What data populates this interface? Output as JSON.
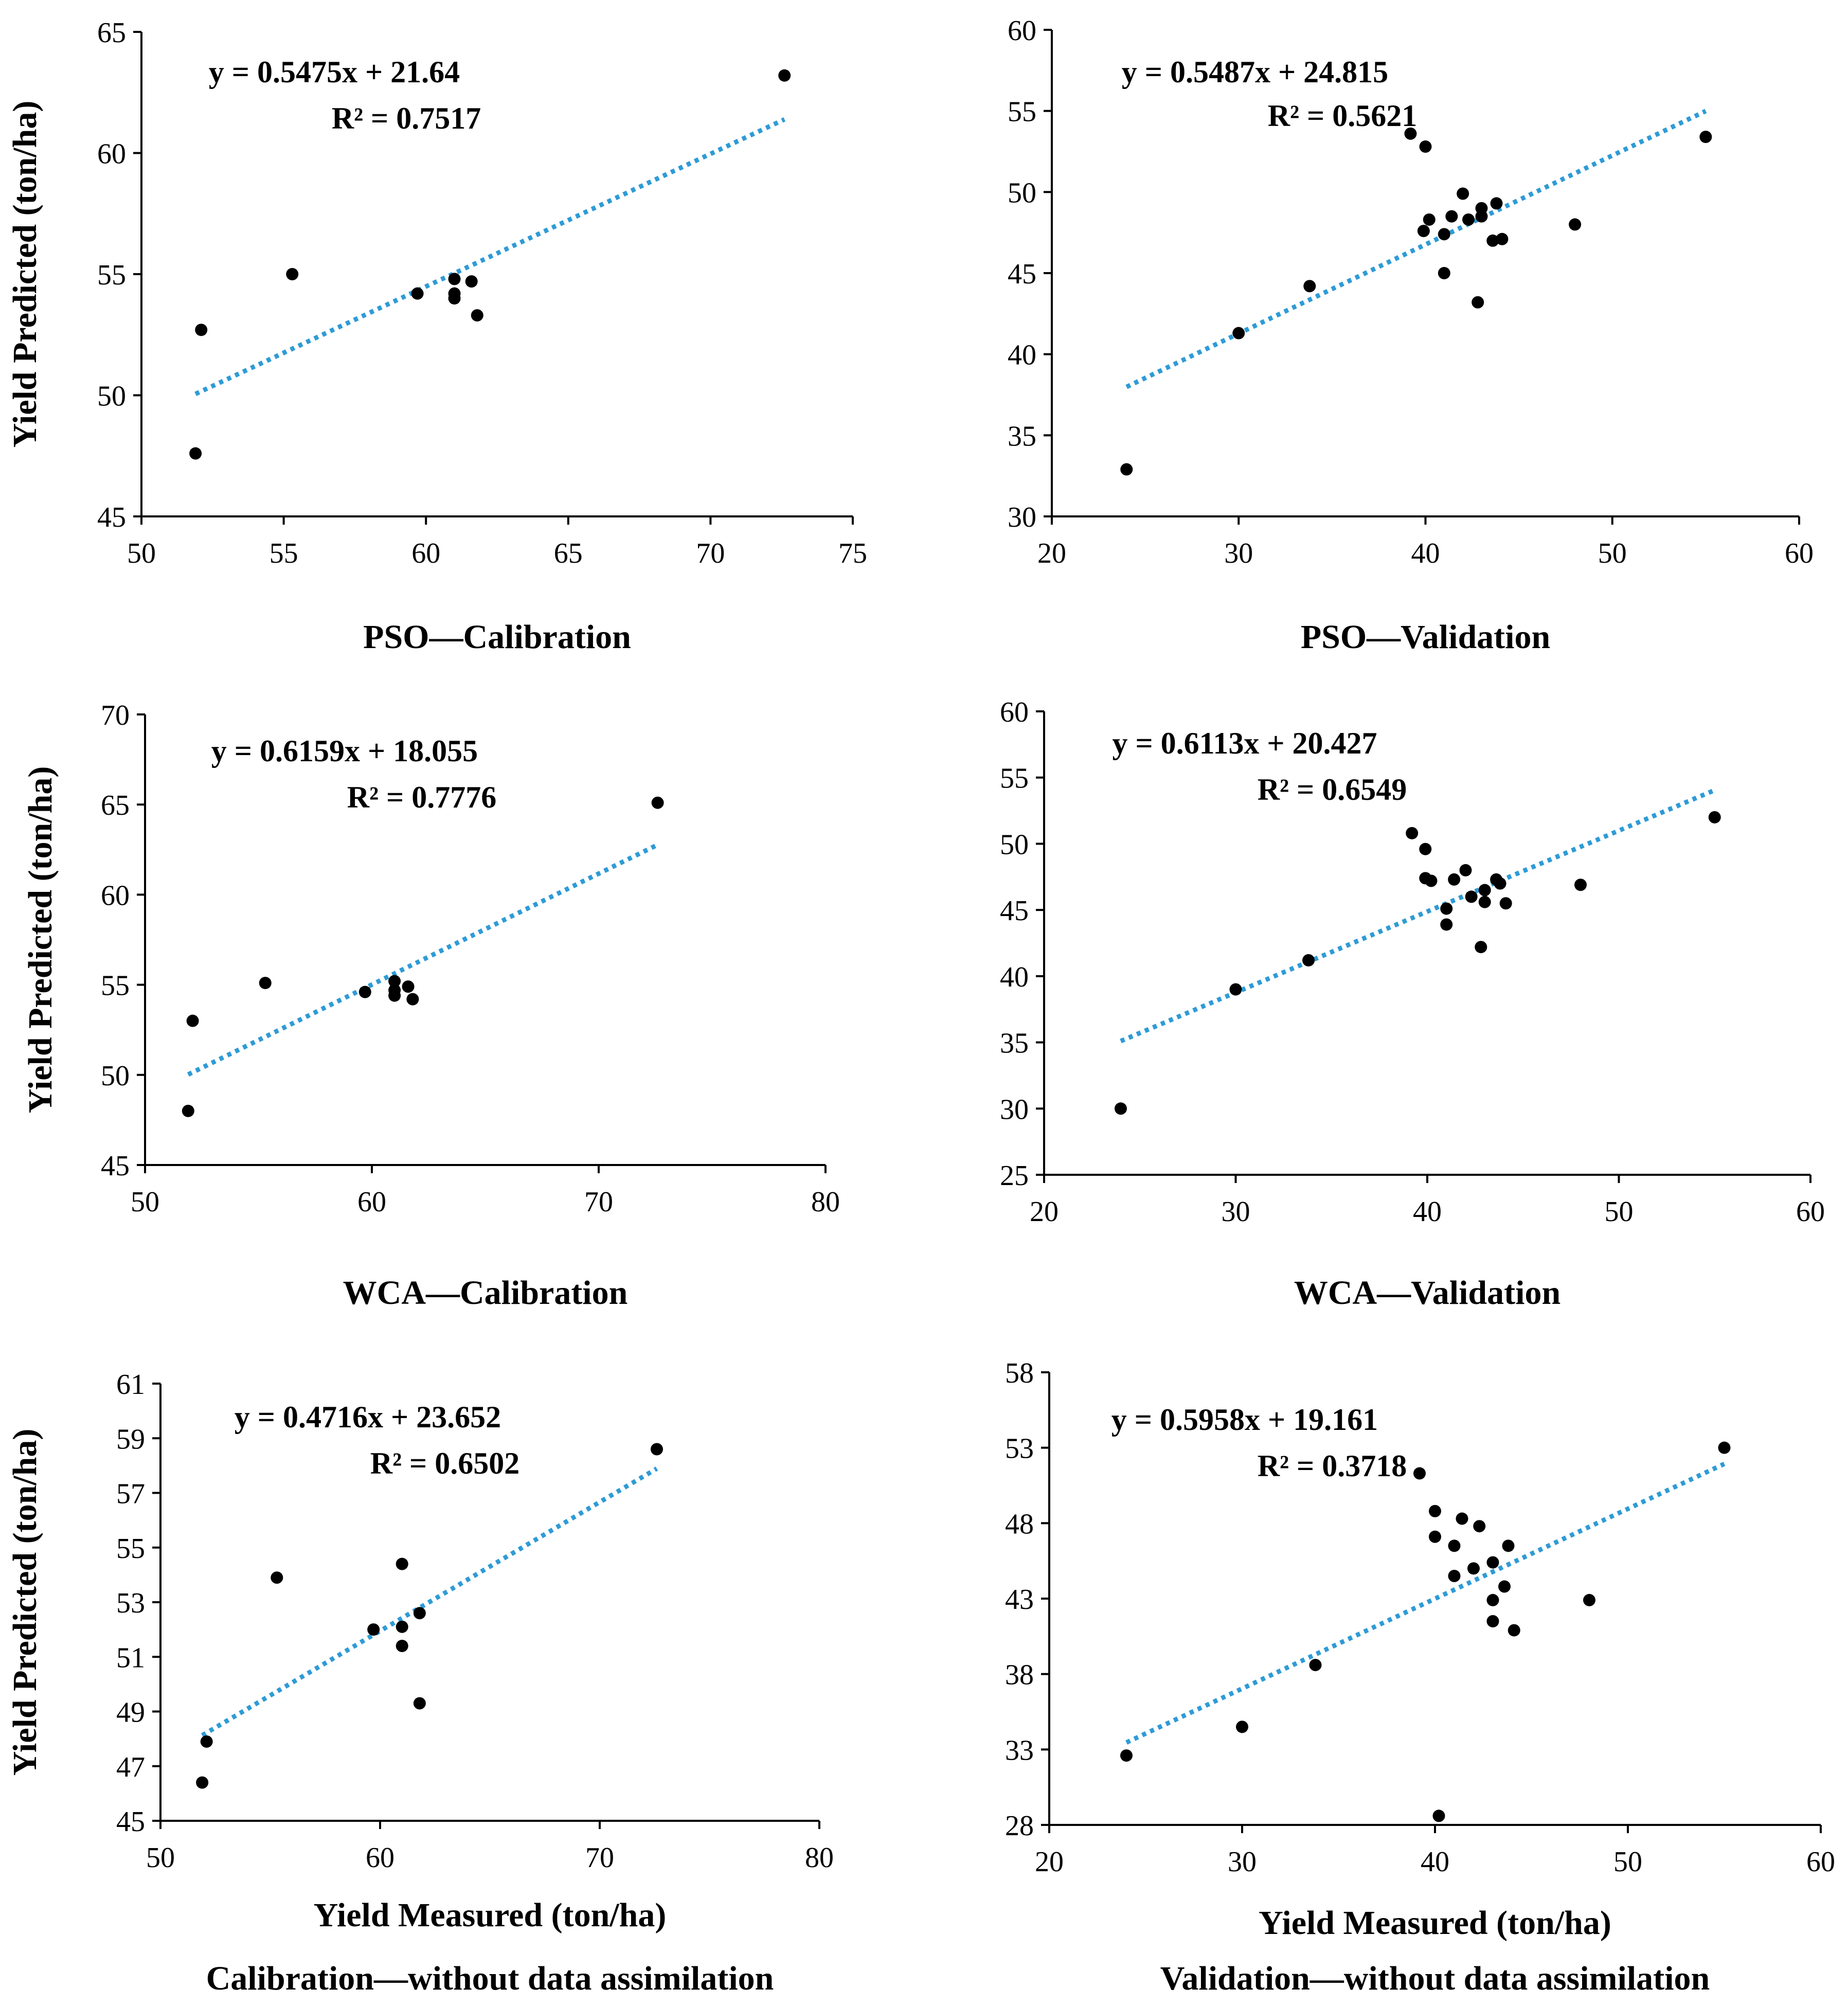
{
  "chart_data": [
    {
      "type": "scatter",
      "caption": "PSO—Calibration",
      "ylabel": "Yield Predicted (ton/ha)",
      "xlabel": "",
      "equation": "y = 0.5475x + 21.64",
      "r2": "R² = 0.7517",
      "xlim": [
        50,
        75
      ],
      "ylim": [
        45,
        65
      ],
      "xticks": [
        50,
        55,
        60,
        65,
        70,
        75
      ],
      "yticks": [
        45,
        50,
        55,
        60,
        65
      ],
      "trend": {
        "slope": 0.5475,
        "intercept": 21.64,
        "x_range": [
          51.9,
          72.6
        ]
      },
      "points": [
        [
          51.9,
          47.6
        ],
        [
          52.1,
          52.7
        ],
        [
          55.3,
          55.0
        ],
        [
          59.7,
          54.2
        ],
        [
          61.0,
          54.8
        ],
        [
          61.0,
          54.2
        ],
        [
          61.0,
          54.0
        ],
        [
          61.6,
          54.7
        ],
        [
          61.8,
          53.3
        ],
        [
          72.6,
          63.2
        ]
      ]
    },
    {
      "type": "scatter",
      "caption": "PSO—Validation",
      "ylabel": "",
      "xlabel": "",
      "equation": "y = 0.5487x + 24.815",
      "r2": "R² = 0.5621",
      "xlim": [
        20,
        60
      ],
      "ylim": [
        30,
        60
      ],
      "xticks": [
        20,
        30,
        40,
        50,
        60
      ],
      "yticks": [
        30,
        35,
        40,
        45,
        50,
        55,
        60
      ],
      "trend": {
        "slope": 0.5487,
        "intercept": 24.815,
        "x_range": [
          24.0,
          55.0
        ]
      },
      "points": [
        [
          24.0,
          32.9
        ],
        [
          30.0,
          41.3
        ],
        [
          33.8,
          44.2
        ],
        [
          39.2,
          53.6
        ],
        [
          40.0,
          52.8
        ],
        [
          39.9,
          47.6
        ],
        [
          40.2,
          48.3
        ],
        [
          41.0,
          47.4
        ],
        [
          41.0,
          45.0
        ],
        [
          41.4,
          48.5
        ],
        [
          42.0,
          49.9
        ],
        [
          42.3,
          48.3
        ],
        [
          42.8,
          43.2
        ],
        [
          43.0,
          49.0
        ],
        [
          43.0,
          48.5
        ],
        [
          43.6,
          47.0
        ],
        [
          43.8,
          49.3
        ],
        [
          44.1,
          47.1
        ],
        [
          48.0,
          48.0
        ],
        [
          55.0,
          53.4
        ]
      ]
    },
    {
      "type": "scatter",
      "caption": "WCA—Calibration",
      "ylabel": "Yield Predicted (ton/ha)",
      "xlabel": "",
      "equation": "y = 0.6159x + 18.055",
      "r2": "R² = 0.7776",
      "xlim": [
        50,
        80
      ],
      "ylim": [
        45,
        70
      ],
      "xticks": [
        50,
        60,
        70,
        80
      ],
      "yticks": [
        45,
        50,
        55,
        60,
        65,
        70
      ],
      "trend": {
        "slope": 0.6159,
        "intercept": 18.055,
        "x_range": [
          51.9,
          72.6
        ]
      },
      "points": [
        [
          51.9,
          48.0
        ],
        [
          52.1,
          53.0
        ],
        [
          55.3,
          55.1
        ],
        [
          59.7,
          54.6
        ],
        [
          61.0,
          55.2
        ],
        [
          61.0,
          54.7
        ],
        [
          61.0,
          54.4
        ],
        [
          61.6,
          54.9
        ],
        [
          61.8,
          54.2
        ],
        [
          72.6,
          65.1
        ]
      ]
    },
    {
      "type": "scatter",
      "caption": "WCA—Validation",
      "ylabel": "",
      "xlabel": "",
      "equation": "y = 0.6113x + 20.427",
      "r2": "R² = 0.6549",
      "xlim": [
        20,
        60
      ],
      "ylim": [
        25,
        60
      ],
      "xticks": [
        20,
        30,
        40,
        50,
        60
      ],
      "yticks": [
        25,
        30,
        35,
        40,
        45,
        50,
        55,
        60
      ],
      "trend": {
        "slope": 0.6113,
        "intercept": 20.427,
        "x_range": [
          24.0,
          55.0
        ]
      },
      "points": [
        [
          24.0,
          30.0
        ],
        [
          30.0,
          39.0
        ],
        [
          33.8,
          41.2
        ],
        [
          39.2,
          50.8
        ],
        [
          39.9,
          49.6
        ],
        [
          39.9,
          47.4
        ],
        [
          40.2,
          47.2
        ],
        [
          41.0,
          45.1
        ],
        [
          41.0,
          43.9
        ],
        [
          41.4,
          47.3
        ],
        [
          42.0,
          48.0
        ],
        [
          42.3,
          46.0
        ],
        [
          42.8,
          42.2
        ],
        [
          43.0,
          46.5
        ],
        [
          43.0,
          45.6
        ],
        [
          43.6,
          47.3
        ],
        [
          43.8,
          47.0
        ],
        [
          44.1,
          45.5
        ],
        [
          48.0,
          46.9
        ],
        [
          55.0,
          52.0
        ]
      ]
    },
    {
      "type": "scatter",
      "caption": "Calibration—without data assimilation",
      "ylabel": "Yield Predicted (ton/ha)",
      "xlabel": "Yield Measured (ton/ha)",
      "equation": "y = 0.4716x + 23.652",
      "r2": "R² = 0.6502",
      "xlim": [
        50,
        80
      ],
      "ylim": [
        45,
        61
      ],
      "xticks": [
        50,
        60,
        70,
        80
      ],
      "yticks": [
        45,
        47,
        49,
        51,
        53,
        55,
        57,
        59,
        61
      ],
      "trend": {
        "slope": 0.4716,
        "intercept": 23.652,
        "x_range": [
          51.9,
          72.6
        ]
      },
      "points": [
        [
          51.9,
          46.4
        ],
        [
          52.1,
          47.9
        ],
        [
          55.3,
          53.9
        ],
        [
          59.7,
          52.0
        ],
        [
          61.0,
          54.4
        ],
        [
          61.0,
          52.1
        ],
        [
          61.0,
          51.4
        ],
        [
          61.8,
          52.6
        ],
        [
          61.8,
          49.3
        ],
        [
          72.6,
          58.6
        ]
      ]
    },
    {
      "type": "scatter",
      "caption": "Validation—without data assimilation",
      "ylabel": "",
      "xlabel": "Yield Measured (ton/ha)",
      "equation": "y = 0.5958x + 19.161",
      "r2": "R² = 0.3718",
      "xlim": [
        20,
        60
      ],
      "ylim": [
        28,
        58
      ],
      "xticks": [
        20,
        30,
        40,
        50,
        60
      ],
      "yticks": [
        28,
        33,
        38,
        43,
        48,
        53,
        58
      ],
      "trend": {
        "slope": 0.5958,
        "intercept": 19.161,
        "x_range": [
          24.0,
          55.0
        ]
      },
      "points": [
        [
          24.0,
          32.6
        ],
        [
          30.0,
          34.5
        ],
        [
          33.8,
          38.6
        ],
        [
          39.2,
          51.3
        ],
        [
          40.0,
          48.8
        ],
        [
          40.0,
          47.1
        ],
        [
          40.2,
          28.6
        ],
        [
          41.0,
          46.5
        ],
        [
          41.0,
          44.5
        ],
        [
          41.4,
          48.3
        ],
        [
          42.0,
          45.0
        ],
        [
          42.3,
          47.8
        ],
        [
          43.0,
          45.4
        ],
        [
          43.0,
          42.9
        ],
        [
          43.0,
          41.5
        ],
        [
          43.6,
          43.8
        ],
        [
          43.8,
          46.5
        ],
        [
          44.1,
          40.9
        ],
        [
          48.0,
          42.9
        ],
        [
          55.0,
          53.0
        ]
      ]
    }
  ]
}
